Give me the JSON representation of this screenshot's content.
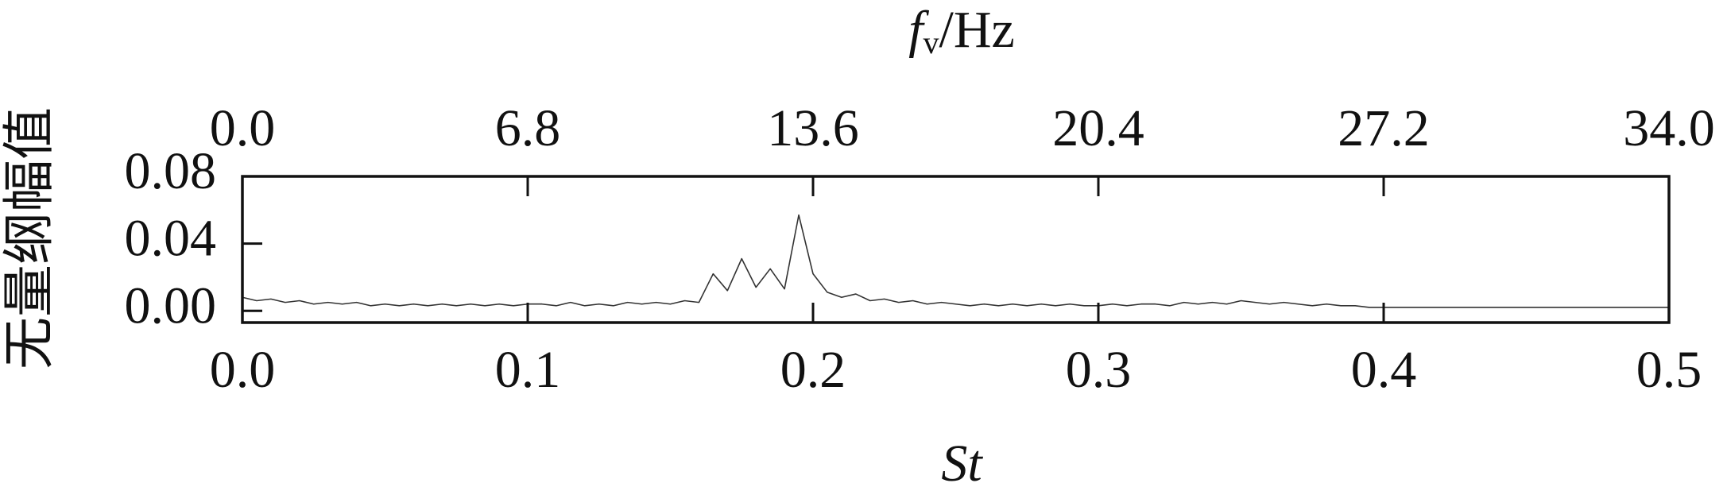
{
  "chart_data": {
    "type": "line",
    "x2label": [
      "f",
      "v",
      "/Hz"
    ],
    "xlabel": "St",
    "ylabel": "无量纲幅值",
    "xlim": [
      0,
      0.5
    ],
    "xticks": [
      {
        "value": 0,
        "label": "0.0"
      },
      0.1,
      0.2,
      0.3,
      0.4,
      0.5
    ],
    "x2lim": [
      0,
      34
    ],
    "x2ticks": [
      {
        "value": 0,
        "label": "0.0"
      },
      6.8,
      13.6,
      20.4,
      27.2,
      {
        "value": 34,
        "label": "34.0"
      }
    ],
    "ylim": [
      -0.007,
      0.08
    ],
    "yticks": [
      {
        "value": 0,
        "label": "0.00"
      },
      {
        "value": 0.04,
        "label": "0.04"
      },
      {
        "value": 0.08,
        "label": "0.08"
      }
    ],
    "x": [
      0,
      0.005,
      0.01,
      0.015,
      0.02,
      0.025,
      0.03,
      0.035,
      0.04,
      0.045,
      0.05,
      0.055,
      0.06,
      0.065,
      0.07,
      0.075,
      0.08,
      0.085,
      0.09,
      0.095,
      0.1,
      0.105,
      0.11,
      0.115,
      0.12,
      0.125,
      0.13,
      0.135,
      0.14,
      0.145,
      0.15,
      0.155,
      0.16,
      0.165,
      0.17,
      0.175,
      0.18,
      0.185,
      0.19,
      0.195,
      0.2,
      0.205,
      0.21,
      0.215,
      0.22,
      0.225,
      0.23,
      0.235,
      0.24,
      0.245,
      0.25,
      0.255,
      0.26,
      0.265,
      0.27,
      0.275,
      0.28,
      0.285,
      0.29,
      0.295,
      0.3,
      0.305,
      0.31,
      0.315,
      0.32,
      0.325,
      0.33,
      0.335,
      0.34,
      0.345,
      0.35,
      0.355,
      0.36,
      0.365,
      0.37,
      0.375,
      0.38,
      0.385,
      0.39,
      0.395,
      0.4,
      0.405,
      0.41,
      0.415,
      0.42,
      0.425,
      0.43,
      0.435,
      0.44,
      0.445,
      0.45,
      0.455,
      0.46,
      0.465,
      0.47,
      0.475,
      0.48,
      0.485,
      0.49,
      0.495,
      0.5
    ],
    "series": [
      {
        "color": "#333333",
        "values": [
          0.008,
          0.006,
          0.007,
          0.005,
          0.006,
          0.004,
          0.005,
          0.004,
          0.005,
          0.003,
          0.004,
          0.003,
          0.004,
          0.003,
          0.004,
          0.003,
          0.004,
          0.003,
          0.004,
          0.003,
          0.004,
          0.004,
          0.003,
          0.005,
          0.003,
          0.004,
          0.003,
          0.005,
          0.004,
          0.005,
          0.004,
          0.006,
          0.005,
          0.022,
          0.012,
          0.031,
          0.014,
          0.025,
          0.013,
          0.057,
          0.022,
          0.011,
          0.008,
          0.01,
          0.006,
          0.007,
          0.005,
          0.006,
          0.004,
          0.005,
          0.004,
          0.003,
          0.004,
          0.003,
          0.004,
          0.003,
          0.004,
          0.003,
          0.004,
          0.003,
          0.003,
          0.004,
          0.003,
          0.004,
          0.004,
          0.003,
          0.005,
          0.004,
          0.005,
          0.004,
          0.006,
          0.005,
          0.004,
          0.005,
          0.004,
          0.003,
          0.004,
          0.003,
          0.003,
          0.002,
          0.002,
          0.002,
          0.002,
          0.002,
          0.002,
          0.002,
          0.002,
          0.002,
          0.002,
          0.002,
          0.002,
          0.002,
          0.002,
          0.002,
          0.002,
          0.002,
          0.002,
          0.002,
          0.002,
          0.002,
          0.002
        ]
      }
    ]
  }
}
